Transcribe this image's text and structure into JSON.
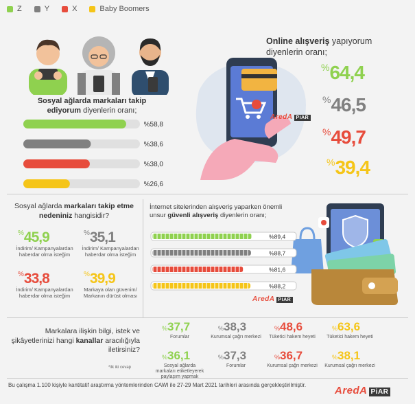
{
  "colors": {
    "z": "#8fd14f",
    "y": "#808080",
    "x": "#e74c3c",
    "boomers": "#f5c518",
    "dark": "#3a3a3a",
    "accent_blue": "#2f6fa3"
  },
  "legend": [
    {
      "label": "Z",
      "color": "#8fd14f"
    },
    {
      "label": "Y",
      "color": "#808080"
    },
    {
      "label": "X",
      "color": "#e74c3c"
    },
    {
      "label": "Baby Boomers",
      "color": "#f5c518"
    }
  ],
  "social_follow": {
    "title_bold": "Sosyal ağlarda markaları takip ediyorum",
    "title_rest": "diyenlerin oranı;"
  },
  "online_shopping": {
    "title_bold": "Online alışveriş",
    "title_rest": "yapıyorum diyenlerin oranı;"
  },
  "reasons": {
    "title_pre": "Sosyal ağlarda",
    "title_bold": "markaları takip etme nedeniniz",
    "title_post": "hangisidir?"
  },
  "secure_shopping": {
    "title_pre": "İnternet sitelerinden alışveriş yaparken önemli unsur",
    "title_bold": "güvenli alışveriş",
    "title_post": "diyenlerin oranı;"
  },
  "channels": {
    "title_pre": "Markalara ilişkin bilgi, istek ve şikâyetlerinizi hangi",
    "title_bold": "kanallar",
    "title_post": "aracılığıyla iletirsiniz?",
    "footnote": "*ilk iki cevap"
  },
  "footer": {
    "text": "Bu çalışma 1.100 kişiyle kantitatif araştırma yöntemlerinden CAWI ile 27-29 Mart 2021 tarihleri arasında gerçekleştirilmiştir."
  },
  "brand": {
    "name": "AredA",
    "sub": "PiAR"
  },
  "chart_data": [
    {
      "type": "bar",
      "title": "Sosyal ağlarda markaları takip ediyorum diyenlerin oranı;",
      "categories": [
        "Z",
        "Y",
        "X",
        "Baby Boomers"
      ],
      "values": [
        58.8,
        38.6,
        38.0,
        26.6
      ],
      "labels": [
        "%58,8",
        "%38,6",
        "%38,0",
        "%26,6"
      ],
      "ylim": [
        0,
        100
      ]
    },
    {
      "type": "table",
      "title": "Online alışveriş yapıyorum diyenlerin oranı;",
      "categories": [
        "Z",
        "Y",
        "X",
        "Baby Boomers"
      ],
      "values": [
        64.4,
        46.5,
        49.7,
        39.4
      ],
      "labels": [
        "64,4",
        "46,5",
        "49,7",
        "39,4"
      ]
    },
    {
      "type": "table",
      "title": "Sosyal ağlarda markaları takip etme nedeniniz hangisidir?",
      "categories": [
        "Z",
        "Y",
        "X",
        "Baby Boomers"
      ],
      "values": [
        45.9,
        35.1,
        33.8,
        39.9
      ],
      "labels": [
        "45,9",
        "35,1",
        "33,8",
        "39,9"
      ],
      "descriptions": [
        "İndirim/ Kampanyalardan haberdar olma isteğim",
        "İndirim/ Kampanyalardan haberdar olma isteğim",
        "İndirim/ Kampanyalardan haberdar olma isteğim",
        "Markaya olan güvenim/ Markanın dürüst olması"
      ]
    },
    {
      "type": "bar",
      "title": "İnternet sitelerinden alışveriş yaparken önemli unsur güvenli alışveriş diyenlerin oranı;",
      "categories": [
        "Z",
        "Y",
        "X",
        "Baby Boomers"
      ],
      "values": [
        89.4,
        88.7,
        81.6,
        88.2
      ],
      "labels": [
        "%89,4",
        "%88,7",
        "%81,6",
        "%88,2"
      ],
      "ylim": [
        0,
        100
      ]
    },
    {
      "type": "table",
      "title": "Markalara ilişkin bilgi, istek ve şikâyetlerinizi hangi kanallar aracılığıyla iletirsiniz?",
      "categories": [
        "Z",
        "Y",
        "X",
        "Baby Boomers"
      ],
      "first": [
        {
          "value": 37.7,
          "label": "37,7",
          "channel": "Forumlar"
        },
        {
          "value": 38.3,
          "label": "38,3",
          "channel": "Kurumsal çağrı merkezi"
        },
        {
          "value": 48.6,
          "label": "48,6",
          "channel": "Tüketici hakem heyeti"
        },
        {
          "value": 63.6,
          "label": "63,6",
          "channel": "Tüketici hakem heyeti"
        }
      ],
      "second": [
        {
          "value": 36.1,
          "label": "36,1",
          "channel": "Sosyal ağlarda markaları etiketleyerek paylaşım yapmak"
        },
        {
          "value": 37.3,
          "label": "37,3",
          "channel": "Forumlar"
        },
        {
          "value": 36.7,
          "label": "36,7",
          "channel": "Kurumsal çağrı merkezi"
        },
        {
          "value": 38.1,
          "label": "38,1",
          "channel": "Kurumsal çağrı merkezi"
        }
      ]
    }
  ]
}
